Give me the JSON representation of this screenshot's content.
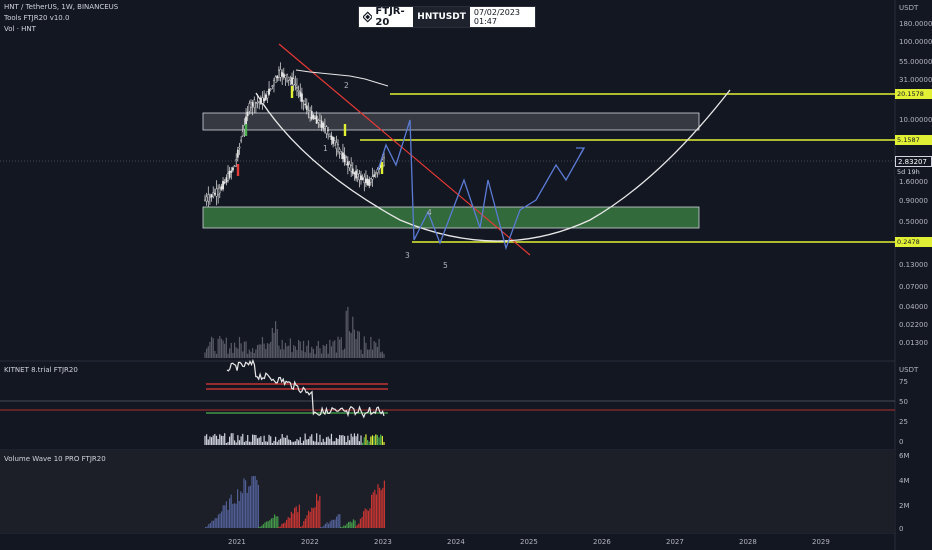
{
  "header": {
    "symbol_line": "HNT / TetherUS, 1W, BINANCEUS",
    "tools_line": "Tools FTJR20 v10.0",
    "vol_line": "Vol · HNT"
  },
  "logo": {
    "brand": "FTJR-20",
    "ticker": "HNTUSDT",
    "timestamp": "07/02/2023 01:47"
  },
  "price_panel": {
    "unit": "USDT",
    "ticks": [
      "180.00000",
      "100.00000",
      "55.00000",
      "31.00000",
      "10.00000",
      "1.60000",
      "0.90000",
      "0.50000",
      "0.13000",
      "0.07000",
      "0.04000",
      "0.02200",
      "0.01300"
    ],
    "last_price": "2.83207",
    "countdown": "5d 19h",
    "level_tags": [
      "20.1578",
      "5.1587",
      "0.2478"
    ],
    "wave_labels": [
      "1",
      "2",
      "3",
      "4",
      "5"
    ],
    "colors": {
      "level": "#e2f035",
      "trend": "#e53935",
      "zone_gray": "#ffffff",
      "zone_green": "#4caf50",
      "projection": "#5b7bd5",
      "last_price_bg": "#131722"
    }
  },
  "kitnet_panel": {
    "title": "KITNET  8.trial  FTJR20",
    "unit": "USDT",
    "ticks": [
      "75",
      "50",
      "25",
      "0"
    ]
  },
  "volwave_panel": {
    "title": "Volume Wave 10 PRO FTJR20",
    "ticks": [
      "6M",
      "4M",
      "2M",
      "0"
    ]
  },
  "time_axis": {
    "labels": [
      "2021",
      "2022",
      "2023",
      "2024",
      "2025",
      "2026",
      "2027",
      "2028",
      "2029"
    ]
  },
  "chart_data": {
    "type": "line",
    "title": "HNT / TetherUS, 1W, BINANCEUS",
    "x": [
      "2020-11",
      "2021-01",
      "2021-04",
      "2021-06",
      "2021-09",
      "2021-11",
      "2022-01",
      "2022-04",
      "2022-06",
      "2022-09",
      "2022-11",
      "2023-01",
      "2023-02"
    ],
    "series": [
      {
        "values": [
          0.9,
          1.2,
          2.5,
          15.0,
          18.0,
          40.0,
          30.0,
          12.0,
          8.0,
          4.0,
          2.0,
          1.5,
          2.83
        ]
      }
    ],
    "yscale": "log",
    "ylim": [
      0.01,
      180
    ],
    "horizontal_levels": [
      20.1578,
      5.1587,
      0.2478
    ]
  }
}
